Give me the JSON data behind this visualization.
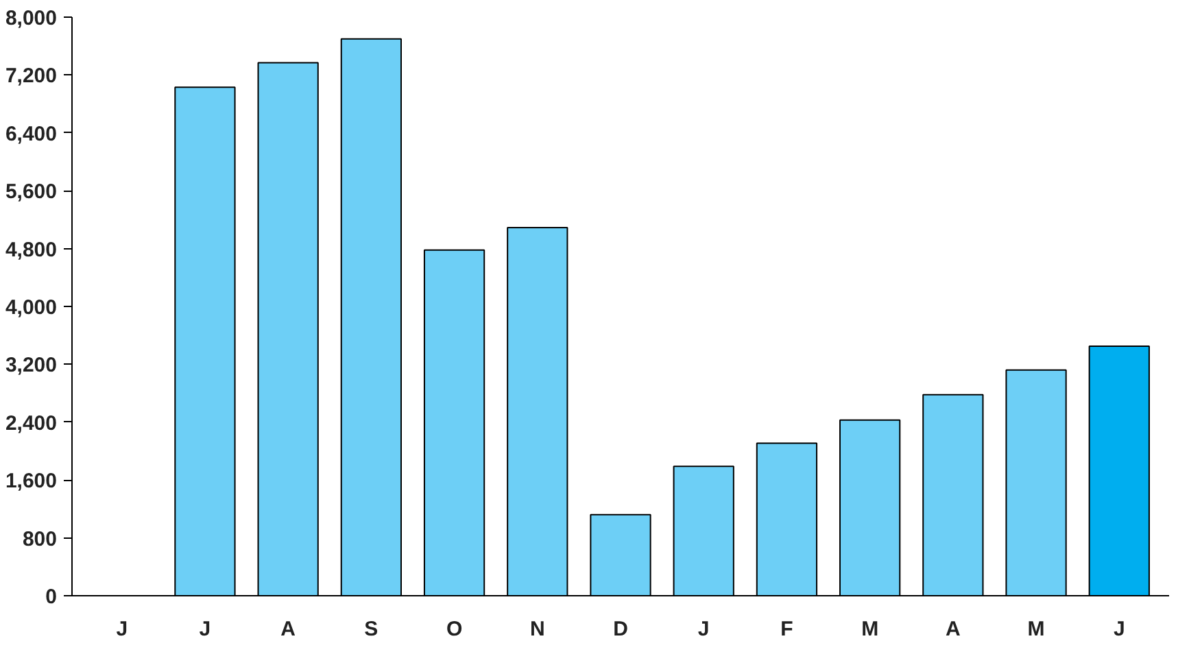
{
  "chart_data": {
    "type": "bar",
    "categories": [
      "J",
      "J",
      "A",
      "S",
      "O",
      "N",
      "D",
      "J",
      "F",
      "M",
      "A",
      "M",
      "J"
    ],
    "values": [
      null,
      7030,
      7370,
      7700,
      4780,
      5090,
      1120,
      1790,
      2110,
      2430,
      2780,
      3120,
      3450
    ],
    "colors": [
      "#6dcff6",
      "#6dcff6",
      "#6dcff6",
      "#6dcff6",
      "#6dcff6",
      "#6dcff6",
      "#6dcff6",
      "#6dcff6",
      "#6dcff6",
      "#6dcff6",
      "#6dcff6",
      "#6dcff6",
      "#00aeef"
    ],
    "ylim": [
      0,
      8000
    ],
    "yticks": [
      {
        "value": 0,
        "label": "0"
      },
      {
        "value": 800,
        "label": "800"
      },
      {
        "value": 1600,
        "label": "1,600"
      },
      {
        "value": 2400,
        "label": "2,400"
      },
      {
        "value": 3200,
        "label": "3,200"
      },
      {
        "value": 4000,
        "label": "4,000"
      },
      {
        "value": 4800,
        "label": "4,800"
      },
      {
        "value": 5600,
        "label": "5,600"
      },
      {
        "value": 6400,
        "label": "6,400"
      },
      {
        "value": 7200,
        "label": "7,200"
      },
      {
        "value": 8000,
        "label": "8,000"
      }
    ],
    "grid": false
  }
}
